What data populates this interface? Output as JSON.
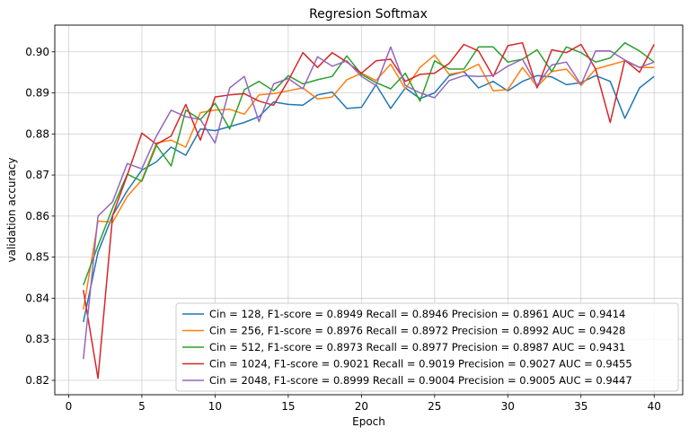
{
  "chart_data": {
    "type": "line",
    "title": "Regresion Softmax",
    "xlabel": "Epoch",
    "ylabel": "validation accuracy",
    "xlim": [
      -0.95,
      41.95
    ],
    "ylim": [
      0.8165,
      0.9065
    ],
    "x_ticks": [
      0,
      5,
      10,
      15,
      20,
      25,
      30,
      35,
      40
    ],
    "y_ticks": [
      0.82,
      0.83,
      0.84,
      0.85,
      0.86,
      0.87,
      0.88,
      0.89,
      0.9
    ],
    "y_tick_labels": [
      "0.82",
      "0.83",
      "0.84",
      "0.85",
      "0.86",
      "0.87",
      "0.88",
      "0.89",
      "0.90"
    ],
    "grid": true,
    "legend_position": "lower-right",
    "x": [
      1,
      2,
      3,
      4,
      5,
      6,
      7,
      8,
      9,
      10,
      11,
      12,
      13,
      14,
      15,
      16,
      17,
      18,
      19,
      20,
      21,
      22,
      23,
      24,
      25,
      26,
      27,
      28,
      29,
      30,
      31,
      32,
      33,
      34,
      35,
      36,
      37,
      38,
      39,
      40
    ],
    "series": [
      {
        "name": "Cin = 128,  F1-score = 0.8949 Recall = 0.8946 Precision = 0.8961 AUC = 0.9414",
        "color": "#1f77b4",
        "values": [
          0.8342,
          0.8512,
          0.8602,
          0.8662,
          0.8712,
          0.8732,
          0.8768,
          0.8748,
          0.8812,
          0.8808,
          0.8818,
          0.8828,
          0.8842,
          0.8878,
          0.8872,
          0.887,
          0.8895,
          0.8902,
          0.8862,
          0.8865,
          0.892,
          0.8862,
          0.8912,
          0.8886,
          0.89,
          0.8942,
          0.8952,
          0.8912,
          0.8928,
          0.8905,
          0.8928,
          0.8942,
          0.8939,
          0.892,
          0.8925,
          0.8942,
          0.8928,
          0.8838,
          0.8912,
          0.894
        ]
      },
      {
        "name": "Cin = 256, F1-score = 0.8976 Recall = 0.8972 Precision = 0.8992 AUC = 0.9428",
        "color": "#ff7f0e",
        "values": [
          0.8372,
          0.8588,
          0.8585,
          0.8648,
          0.8688,
          0.8778,
          0.8785,
          0.8768,
          0.8852,
          0.8858,
          0.886,
          0.8848,
          0.8895,
          0.8898,
          0.8905,
          0.8912,
          0.8885,
          0.889,
          0.8932,
          0.8948,
          0.893,
          0.897,
          0.891,
          0.8962,
          0.8992,
          0.8945,
          0.8952,
          0.897,
          0.8905,
          0.8908,
          0.8962,
          0.8915,
          0.8952,
          0.8958,
          0.8918,
          0.8958,
          0.8968,
          0.8978,
          0.8962,
          0.8962
        ]
      },
      {
        "name": "Cin = 512,  F1-score = 0.8973 Recall = 0.8977 Precision = 0.8987 AUC = 0.9431",
        "color": "#2ca02c",
        "values": [
          0.8432,
          0.8528,
          0.862,
          0.8702,
          0.8685,
          0.8772,
          0.8722,
          0.8858,
          0.8835,
          0.8875,
          0.8812,
          0.8908,
          0.8928,
          0.8905,
          0.8942,
          0.8922,
          0.8932,
          0.894,
          0.899,
          0.8945,
          0.8925,
          0.891,
          0.8948,
          0.888,
          0.8978,
          0.8958,
          0.8958,
          0.9012,
          0.9012,
          0.8975,
          0.8982,
          0.9005,
          0.8952,
          0.9012,
          0.8998,
          0.8975,
          0.8985,
          0.9022,
          0.9002,
          0.8975
        ]
      },
      {
        "name": "Cin = 1024, F1-score = 0.9021 Recall = 0.9019 Precision = 0.9027 AUC = 0.9455",
        "color": "#d62728",
        "values": [
          0.842,
          0.8205,
          0.8602,
          0.87,
          0.8802,
          0.8775,
          0.8795,
          0.8872,
          0.8785,
          0.889,
          0.8895,
          0.8898,
          0.888,
          0.887,
          0.893,
          0.8998,
          0.8962,
          0.8998,
          0.8975,
          0.8948,
          0.8978,
          0.8982,
          0.8928,
          0.8945,
          0.8948,
          0.8972,
          0.9018,
          0.9002,
          0.894,
          0.9015,
          0.9022,
          0.8912,
          0.9005,
          0.8998,
          0.9018,
          0.8958,
          0.8828,
          0.898,
          0.895,
          0.9018
        ]
      },
      {
        "name": "Cin = 2048,  F1-score = 0.8999 Recall = 0.9004 Precision = 0.9005 AUC = 0.9447",
        "color": "#9467bd",
        "values": [
          0.8252,
          0.86,
          0.8635,
          0.8728,
          0.8715,
          0.8795,
          0.8858,
          0.8842,
          0.8835,
          0.8778,
          0.8912,
          0.894,
          0.883,
          0.8922,
          0.8935,
          0.891,
          0.8988,
          0.8965,
          0.8978,
          0.894,
          0.8918,
          0.9012,
          0.8918,
          0.89,
          0.8888,
          0.893,
          0.8942,
          0.894,
          0.8942,
          0.8965,
          0.8982,
          0.8918,
          0.8968,
          0.8975,
          0.892,
          0.9002,
          0.9002,
          0.898,
          0.8962,
          0.8975
        ]
      }
    ]
  }
}
